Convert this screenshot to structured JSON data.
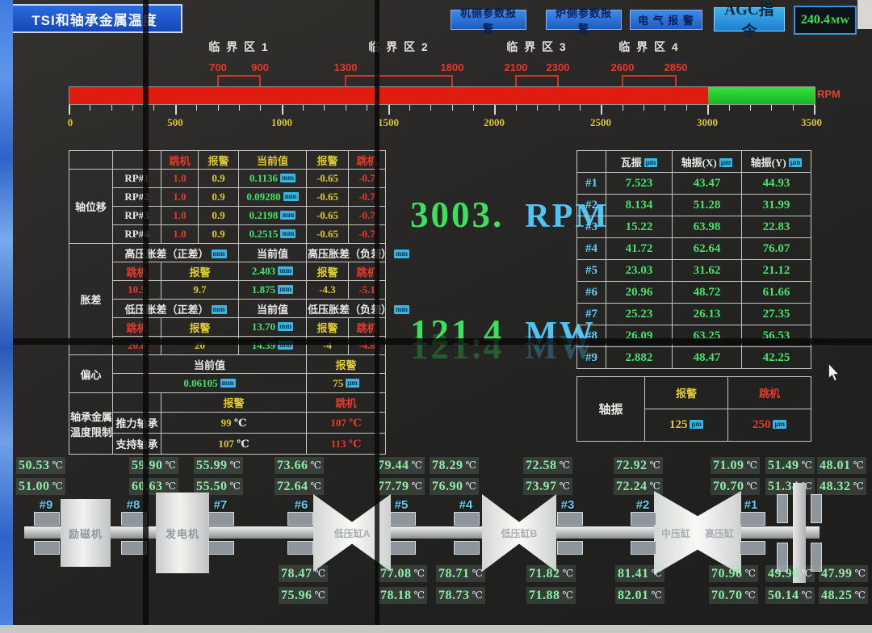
{
  "title": "TSI和轴承金属温度",
  "toolbar": {
    "machine_alarm": "机侧参数报警",
    "boiler_alarm": "炉侧参数报警",
    "electric_alarm": "电 气 报 警",
    "agc": "AGC指令",
    "agc_value": "240.4",
    "agc_unit": "MW"
  },
  "rpm_scale": {
    "zones": [
      "临 界 区 1",
      "临 界 区 2",
      "临 界 区 3",
      "临 界 区 4"
    ],
    "marks": [
      "700",
      "900",
      "1300",
      "1800",
      "2100",
      "2300",
      "2600",
      "2850"
    ],
    "ticks": [
      "0",
      "500",
      "1000",
      "1500",
      "2000",
      "2500",
      "3000",
      "3500"
    ],
    "unit": "RPM"
  },
  "center": {
    "rpm_value": "3003.",
    "rpm_unit": "RPM",
    "power_value": "121.4",
    "power_unit": "MW"
  },
  "left_table": {
    "header": {
      "trip": "跳机",
      "alarm": "报警",
      "current": "当前值"
    },
    "axial": {
      "group": "轴位移",
      "unit": "mm",
      "rows": [
        {
          "label": "RP#1",
          "trip_hi": "1.0",
          "alarm_hi": "0.9",
          "value": "0.1136",
          "alarm_lo": "-0.65",
          "trip_lo": "-0.7"
        },
        {
          "label": "RP#2",
          "trip_hi": "1.0",
          "alarm_hi": "0.9",
          "value": "0.09280",
          "alarm_lo": "-0.65",
          "trip_lo": "-0.7"
        },
        {
          "label": "RP#3",
          "trip_hi": "1.0",
          "alarm_hi": "0.9",
          "value": "0.2198",
          "alarm_lo": "-0.65",
          "trip_lo": "-0.7"
        },
        {
          "label": "RP#4",
          "trip_hi": "1.0",
          "alarm_hi": "0.9",
          "value": "0.2515",
          "alarm_lo": "-0.65",
          "trip_lo": "-0.7"
        }
      ]
    },
    "expansion": {
      "group": "胀差",
      "sections": [
        {
          "pos_header": "高压胀差（正差）",
          "neg_header": "高压胀差（负差）",
          "current_header": "当前值",
          "unit": "mm",
          "cur1": "2.403",
          "cur2": "1.875",
          "trip_pos": "10.5",
          "alarm_pos": "9.7",
          "alarm_neg": "-4.3",
          "trip_neg": "-5.1"
        },
        {
          "pos_header": "低压胀差（正差）",
          "neg_header": "低压胀差（负差）",
          "current_header": "当前值",
          "unit": "mm",
          "cur1": "13.70",
          "cur2": "14.39",
          "trip_pos": "20.8",
          "alarm_pos": "20",
          "alarm_neg": "-4",
          "trip_neg": "-4.8"
        }
      ]
    },
    "eccentricity": {
      "group": "偏心",
      "current_header": "当前值",
      "alarm_header": "报警",
      "value": "0.06105",
      "value_unit": "mm",
      "alarm": "75",
      "alarm_unit": "μm"
    },
    "bearing_temp": {
      "group_line1": "轴承金属",
      "group_line2": "温度限制",
      "alarm_header": "报警",
      "trip_header": "跳机",
      "unit": "℃",
      "rows": [
        {
          "label": "推力轴承",
          "alarm": "99",
          "trip": "107"
        },
        {
          "label": "支持轴承",
          "alarm": "107",
          "trip": "113"
        }
      ]
    }
  },
  "right_table": {
    "headers": [
      "瓦振",
      "轴振(X)",
      "轴振(Y)"
    ],
    "unit": "μm",
    "rows": [
      {
        "label": "#1",
        "pad": "7.523",
        "x": "43.47",
        "y": "44.93"
      },
      {
        "label": "#2",
        "pad": "8.134",
        "x": "51.28",
        "y": "31.99"
      },
      {
        "label": "#3",
        "pad": "15.22",
        "x": "63.98",
        "y": "22.83"
      },
      {
        "label": "#4",
        "pad": "41.72",
        "x": "62.64",
        "y": "76.07"
      },
      {
        "label": "#5",
        "pad": "23.03",
        "x": "31.62",
        "y": "21.12"
      },
      {
        "label": "#6",
        "pad": "20.96",
        "x": "48.72",
        "y": "61.66"
      },
      {
        "label": "#7",
        "pad": "25.23",
        "x": "26.13",
        "y": "27.35"
      },
      {
        "label": "#8",
        "pad": "26.09",
        "x": "63.25",
        "y": "56.53"
      },
      {
        "label": "#9",
        "pad": "2.882",
        "x": "48.47",
        "y": "42.25"
      }
    ],
    "shaft_vib": {
      "group": "轴振",
      "alarm_header": "报警",
      "trip_header": "跳机",
      "alarm": "125",
      "trip": "250",
      "unit": "μm"
    }
  },
  "turbine": {
    "temp_unit": "℃",
    "machines": [
      "励磁机",
      "发电机",
      "低压缸A",
      "低压缸B",
      "中压缸",
      "高压缸"
    ],
    "bearings": [
      {
        "id": "#9",
        "t1": "50.53",
        "t2": "51.00"
      },
      {
        "id": "#8",
        "t1": "59.90",
        "t2": "60.63"
      },
      {
        "id": "#7",
        "t1": "55.99",
        "t2": "55.50"
      },
      {
        "id": "#6",
        "t1": "73.66",
        "t2": "72.64",
        "b1": "78.47",
        "b2": "75.96"
      },
      {
        "id": "#5",
        "t1": "79.44",
        "t2": "77.79",
        "b1": "77.08",
        "b2": "78.18"
      },
      {
        "id": "#4",
        "t1": "78.29",
        "t2": "76.90",
        "b1": "78.71",
        "b2": "78.73"
      },
      {
        "id": "#3",
        "t1": "72.58",
        "t2": "73.97",
        "b1": "71.82",
        "b2": "71.88"
      },
      {
        "id": "#2",
        "t1": "72.92",
        "t2": "72.24",
        "b1": "81.41",
        "b2": "82.01"
      },
      {
        "id": "#1",
        "t1": "71.09",
        "t2": "70.70",
        "b1": "70.96",
        "b2": "70.70"
      },
      {
        "id": "",
        "t1": "51.49",
        "t2": "51.34",
        "b1": "49.96",
        "b2": "50.14"
      },
      {
        "id": "",
        "t1": "48.01",
        "t2": "48.32",
        "b1": "47.99",
        "b2": "48.25"
      }
    ]
  },
  "colors": {
    "alarm_yellow": "#ddc832",
    "trip_red": "#e6392a",
    "value_green": "#46e06c",
    "unit_cyan": "#38b6e6",
    "button_blue": "#1d5cc0"
  }
}
